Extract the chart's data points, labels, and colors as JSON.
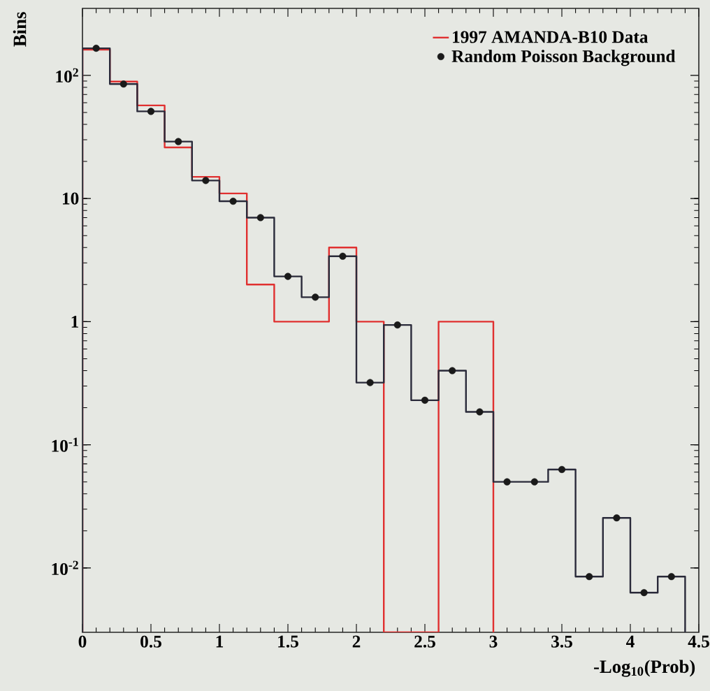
{
  "chart_data": {
    "type": "histogram",
    "xlabel": "-Log$_{10}$(Prob)",
    "ylabel": "Bins",
    "log": "y",
    "legend": "top right",
    "xlim": [
      0,
      4.5
    ],
    "ylim": [
      0.003,
      350
    ],
    "xticks": [
      0,
      0.5,
      1,
      1.5,
      2,
      2.5,
      3,
      3.5,
      4,
      4.5
    ],
    "yticks": [
      {
        "value": 0.01,
        "label": "10$^{-2}$"
      },
      {
        "value": 0.1,
        "label": "10$^{-1}$"
      },
      1,
      10,
      {
        "value": 100,
        "label": "10$^{2}$"
      }
    ],
    "bins": [
      0,
      0.2,
      0.4,
      0.6,
      0.8,
      1.0,
      1.2,
      1.4,
      1.6,
      1.8,
      2.0,
      2.2,
      2.4,
      2.6,
      2.8,
      3.0,
      3.2,
      3.4,
      3.6,
      3.8,
      4.0,
      4.2,
      4.4
    ],
    "series": [
      {
        "name": "1997 AMANDA-B10 Data",
        "color": "#e03030",
        "bins": [
          0,
          0.2,
          0.4,
          0.6,
          0.8,
          1.0,
          1.2,
          1.4,
          1.6,
          1.8,
          2.0,
          2.2,
          2.4,
          2.6,
          2.8,
          3.0
        ],
        "values": [
          162,
          89,
          57,
          26,
          15,
          11,
          2,
          1,
          1,
          4,
          1,
          null,
          null,
          1,
          1
        ]
      },
      {
        "color": "#2a2a3a",
        "values": [
          166,
          85,
          51,
          29,
          14,
          9.5,
          7.0,
          2.33,
          1.58,
          3.4,
          0.32,
          0.94,
          0.23,
          0.4,
          0.185,
          0.05,
          0.05,
          0.063,
          0.0085,
          0.0255,
          0.0063,
          0.0085
        ]
      },
      {
        "type": "scatter",
        "name": "Random Poisson Background",
        "color": "#1a1a1a",
        "marker": "circle",
        "x": [
          0.1,
          0.3,
          0.5,
          0.7,
          0.9,
          1.1,
          1.3,
          1.5,
          1.7,
          1.9,
          2.1,
          2.3,
          2.5,
          2.7,
          2.9,
          3.1,
          3.3,
          3.5,
          3.7,
          3.9,
          4.1,
          4.3
        ],
        "values": [
          166,
          85,
          51,
          29,
          14,
          9.5,
          7.0,
          2.33,
          1.58,
          3.4,
          0.32,
          0.94,
          0.23,
          0.4,
          0.185,
          0.05,
          0.05,
          0.063,
          0.0085,
          0.0255,
          0.0063,
          0.0085
        ]
      }
    ]
  }
}
